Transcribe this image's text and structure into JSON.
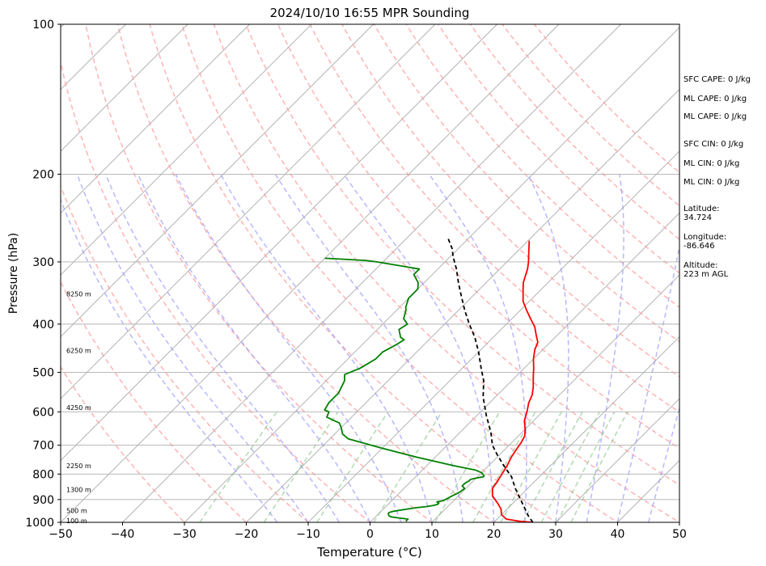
{
  "chart_data": {
    "type": "line",
    "title": "2024/10/10 16:55 MPR Sounding",
    "xlabel": "Temperature (°C)",
    "ylabel": "Pressure (hPa)",
    "xlim": [
      -50,
      50
    ],
    "ylim": [
      1000,
      100
    ],
    "y_scale": "log",
    "grid": true,
    "x_ticks": [
      "−50",
      "−40",
      "−30",
      "−20",
      "−10",
      "0",
      "10",
      "20",
      "30",
      "40",
      "50"
    ],
    "x_tick_values": [
      -50,
      -40,
      -30,
      -20,
      -10,
      0,
      10,
      20,
      30,
      40,
      50
    ],
    "y_ticks": [
      "100",
      "200",
      "300",
      "400",
      "500",
      "600",
      "700",
      "800",
      "900",
      "1000"
    ],
    "y_tick_values": [
      100,
      200,
      300,
      400,
      500,
      600,
      700,
      800,
      900,
      1000
    ],
    "height_labels": [
      {
        "text": "8250 m",
        "p": 348
      },
      {
        "text": "6250 m",
        "p": 452
      },
      {
        "text": "4250 m",
        "p": 588
      },
      {
        "text": "2250 m",
        "p": 770
      },
      {
        "text": "1300 m",
        "p": 860
      },
      {
        "text": "500 m",
        "p": 947
      },
      {
        "text": "100 m",
        "p": 992
      }
    ],
    "series": [
      {
        "color": "#ff0000",
        "points": [
          [
            26.3,
            1000
          ],
          [
            24,
            995
          ],
          [
            21.5,
            985
          ],
          [
            20,
            965
          ],
          [
            19,
            940
          ],
          [
            17.5,
            915
          ],
          [
            15.5,
            885
          ],
          [
            14.3,
            855
          ],
          [
            14,
            830
          ],
          [
            13.5,
            800
          ],
          [
            13,
            770
          ],
          [
            12.3,
            740
          ],
          [
            11.8,
            710
          ],
          [
            11.5,
            690
          ],
          [
            11,
            670
          ],
          [
            10,
            650
          ],
          [
            8.5,
            625
          ],
          [
            7.5,
            600
          ],
          [
            6.3,
            575
          ],
          [
            5.6,
            555
          ],
          [
            4.5,
            535
          ],
          [
            3.5,
            520
          ],
          [
            2.5,
            505
          ],
          [
            1.5,
            490
          ],
          [
            0,
            470
          ],
          [
            -1.3,
            450
          ],
          [
            -2,
            435
          ],
          [
            -3.5,
            420
          ],
          [
            -5,
            405
          ],
          [
            -7,
            390
          ],
          [
            -9,
            375
          ],
          [
            -11,
            360
          ],
          [
            -13,
            340
          ],
          [
            -14,
            330
          ],
          [
            -15.5,
            310
          ],
          [
            -16.5,
            300
          ],
          [
            -18,
            287
          ],
          [
            -19.8,
            272
          ]
        ]
      },
      {
        "color": "#008000",
        "points": [
          [
            5.6,
            995
          ],
          [
            5.6,
            985
          ],
          [
            4,
            980
          ],
          [
            2.5,
            975
          ],
          [
            2,
            970
          ],
          [
            1.5,
            960
          ],
          [
            1.5,
            955
          ],
          [
            2,
            950
          ],
          [
            4,
            940
          ],
          [
            5,
            935
          ],
          [
            6.5,
            930
          ],
          [
            7.5,
            925
          ],
          [
            8,
            920
          ],
          [
            8,
            915
          ],
          [
            7.5,
            910
          ],
          [
            8.3,
            905
          ],
          [
            8.5,
            900
          ],
          [
            9,
            885
          ],
          [
            9.6,
            870
          ],
          [
            9.8,
            855
          ],
          [
            9,
            845
          ],
          [
            9,
            835
          ],
          [
            9.3,
            825
          ],
          [
            9.3,
            820
          ],
          [
            10,
            815
          ],
          [
            11,
            810
          ],
          [
            10.8,
            805
          ],
          [
            10,
            795
          ],
          [
            8.5,
            785
          ],
          [
            4.5,
            770
          ],
          [
            -3,
            740
          ],
          [
            -10,
            710
          ],
          [
            -17,
            680
          ],
          [
            -18.7,
            665
          ],
          [
            -20,
            645
          ],
          [
            -21,
            632
          ],
          [
            -24,
            615
          ],
          [
            -24.5,
            600
          ],
          [
            -25.5,
            595
          ],
          [
            -26,
            575
          ],
          [
            -26,
            550
          ],
          [
            -26.5,
            535
          ],
          [
            -27,
            520
          ],
          [
            -28,
            505
          ],
          [
            -26.5,
            490
          ],
          [
            -25.5,
            470
          ],
          [
            -25.5,
            455
          ],
          [
            -24.5,
            440
          ],
          [
            -24,
            430
          ],
          [
            -25,
            425
          ],
          [
            -26.5,
            410
          ],
          [
            -26,
            400
          ],
          [
            -27.5,
            390
          ],
          [
            -28.5,
            375
          ],
          [
            -29,
            370
          ],
          [
            -30,
            355
          ],
          [
            -30,
            340
          ],
          [
            -31,
            330
          ],
          [
            -33,
            318
          ],
          [
            -33,
            310
          ],
          [
            -41,
            300
          ],
          [
            -43,
            298
          ],
          [
            -50,
            295
          ]
        ]
      },
      {
        "color": "#000000",
        "dashed": true,
        "points": [
          [
            26.3,
            1000
          ],
          [
            24.5,
            970
          ],
          [
            21.5,
            915
          ],
          [
            18,
            855
          ],
          [
            15.5,
            810
          ],
          [
            12.5,
            770
          ],
          [
            9.5,
            730
          ],
          [
            7.3,
            700
          ],
          [
            5,
            660
          ],
          [
            1.5,
            610
          ],
          [
            -2,
            560
          ],
          [
            -4.5,
            520
          ],
          [
            -7,
            490
          ],
          [
            -10,
            455
          ],
          [
            -13,
            425
          ],
          [
            -16,
            400
          ],
          [
            -19,
            375
          ],
          [
            -22,
            350
          ],
          [
            -24.5,
            330
          ],
          [
            -27,
            310
          ],
          [
            -29.5,
            293
          ],
          [
            -31,
            282
          ],
          [
            -33.5,
            268
          ]
        ]
      }
    ],
    "background_lines": {
      "dry_adiabats_C": [
        -30,
        -20,
        -10,
        0,
        10,
        20,
        30,
        40,
        50,
        60,
        70,
        80,
        90,
        100,
        110,
        120,
        130,
        140,
        150
      ],
      "moist_adiabats_C": [
        -15,
        -10,
        -5,
        0,
        5,
        10,
        15,
        20,
        25,
        30,
        35,
        40,
        45
      ],
      "mixing_ratio_g_kg": [
        0.4,
        1,
        2,
        4,
        8,
        12,
        16,
        20,
        24,
        28,
        32
      ]
    },
    "colors": {
      "temperature": "#ff0000",
      "dewpoint": "#008000",
      "parcel": "#000000",
      "isotherm": "#999999",
      "dry_adiabat": "#ff9999",
      "moist_adiabat": "#9999ff",
      "mixing_ratio": "#7fbf7f"
    }
  },
  "stats": [
    {
      "text": "SFC CAPE: 0 J/kg"
    },
    {
      "text": "ML CAPE: 0 J/kg"
    },
    {
      "text": "ML CAPE: 0 J/kg"
    },
    {
      "text": "SFC CIN: 0 J/kg"
    },
    {
      "text": "ML CIN: 0 J/kg"
    },
    {
      "text": "ML CIN: 0 J/kg"
    },
    {
      "text": "Latitude:\n34.724"
    },
    {
      "text": "Longitude:\n-86.646"
    },
    {
      "text": "Altitude:\n223 m AGL"
    }
  ]
}
